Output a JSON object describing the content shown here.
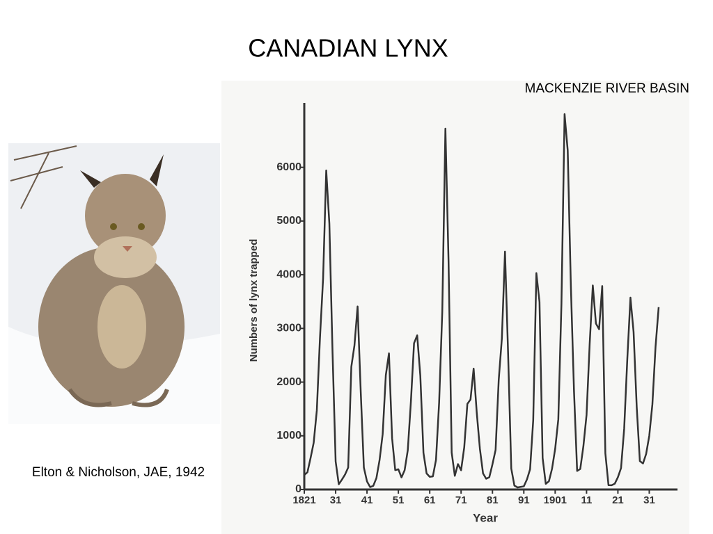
{
  "chart_data": {
    "type": "line",
    "title": "CANADIAN LYNX",
    "subtitle": "MACKENZIE RIVER BASIN",
    "annotation": "Elton & Nicholson, JAE, 1942",
    "xlabel": "Year",
    "ylabel": "Numbers of lynx trapped",
    "x": [
      1821,
      1822,
      1823,
      1824,
      1825,
      1826,
      1827,
      1828,
      1829,
      1830,
      1831,
      1832,
      1833,
      1834,
      1835,
      1836,
      1837,
      1838,
      1839,
      1840,
      1841,
      1842,
      1843,
      1844,
      1845,
      1846,
      1847,
      1848,
      1849,
      1850,
      1851,
      1852,
      1853,
      1854,
      1855,
      1856,
      1857,
      1858,
      1859,
      1860,
      1861,
      1862,
      1863,
      1864,
      1865,
      1866,
      1867,
      1868,
      1869,
      1870,
      1871,
      1872,
      1873,
      1874,
      1875,
      1876,
      1877,
      1878,
      1879,
      1880,
      1881,
      1882,
      1883,
      1884,
      1885,
      1886,
      1887,
      1888,
      1889,
      1890,
      1891,
      1892,
      1893,
      1894,
      1895,
      1896,
      1897,
      1898,
      1899,
      1900,
      1901,
      1902,
      1903,
      1904,
      1905,
      1906,
      1907,
      1908,
      1909,
      1910,
      1911,
      1912,
      1913,
      1914,
      1915,
      1916,
      1917,
      1918,
      1919,
      1920,
      1921,
      1922,
      1923,
      1924,
      1925,
      1926,
      1927,
      1928,
      1929,
      1930,
      1931,
      1932,
      1933,
      1934
    ],
    "series": [
      {
        "name": "Lynx trapped",
        "color": "#333333",
        "values": [
          269,
          321,
          585,
          871,
          1475,
          2821,
          3928,
          5943,
          4950,
          2577,
          523,
          98,
          184,
          279,
          409,
          2285,
          2685,
          3409,
          1824,
          409,
          151,
          45,
          68,
          213,
          546,
          1033,
          2129,
          2536,
          957,
          361,
          377,
          225,
          360,
          731,
          1638,
          2725,
          2871,
          2119,
          684,
          299,
          236,
          245,
          552,
          1623,
          3311,
          6721,
          4254,
          687,
          255,
          473,
          358,
          784,
          1594,
          1676,
          2251,
          1426,
          756,
          299,
          201,
          229,
          469,
          736,
          2042,
          2811,
          4431,
          2511,
          389,
          73,
          39,
          49,
          59,
          188,
          377,
          1292,
          4031,
          3495,
          587,
          105,
          153,
          387,
          758,
          1307,
          3465,
          6991,
          6313,
          3794,
          1836,
          345,
          382,
          808,
          1388,
          2713,
          3800,
          3091,
          2985,
          3790,
          674,
          81,
          80,
          108,
          229,
          399,
          1132,
          2432,
          3574,
          2935,
          1537,
          529,
          485,
          662,
          1000,
          1590,
          2657,
          3396
        ]
      }
    ],
    "xlim": [
      1821,
      1940
    ],
    "xticks": [
      1821,
      {
        "value": 1831,
        "label": "31"
      },
      {
        "value": 1841,
        "label": "41"
      },
      {
        "value": 1851,
        "label": "51"
      },
      {
        "value": 1861,
        "label": "61"
      },
      {
        "value": 1871,
        "label": "71"
      },
      {
        "value": 1881,
        "label": "81"
      },
      {
        "value": 1891,
        "label": "91"
      },
      1901,
      {
        "value": 1911,
        "label": "11"
      },
      {
        "value": 1921,
        "label": "21"
      },
      {
        "value": 1931,
        "label": "31"
      }
    ],
    "ylim": [
      0,
      7200
    ],
    "yticks": [
      0,
      1000,
      2000,
      3000,
      4000,
      5000,
      6000
    ],
    "grid": false
  }
}
